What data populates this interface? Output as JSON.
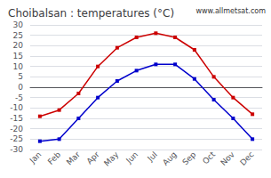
{
  "chart_data": {
    "type": "line",
    "title": "Choibalsan : temperatures (°C)",
    "annotation": "www.allmetsat.com",
    "categories": [
      "Jan",
      "Feb",
      "Mar",
      "Apr",
      "May",
      "Jun",
      "Jul",
      "Aug",
      "Sep",
      "Oct",
      "Nov",
      "Dec"
    ],
    "series": [
      {
        "color": "#cc0000",
        "marker": "square",
        "line_style": "solid",
        "values": [
          -14,
          -11,
          -3,
          10,
          19,
          24,
          26,
          24,
          18,
          5,
          -5,
          -13
        ]
      },
      {
        "color": "#0000cc",
        "marker": "square",
        "line_style": "solid",
        "values": [
          -26,
          -25,
          -15,
          -5,
          3,
          8,
          11,
          11,
          4,
          -6,
          -15,
          -25
        ]
      }
    ],
    "ylim": [
      -30,
      30
    ],
    "yticks": [
      -30,
      -25,
      -20,
      -15,
      -10,
      -5,
      0,
      5,
      10,
      15,
      20,
      25,
      30
    ],
    "grid": true
  }
}
